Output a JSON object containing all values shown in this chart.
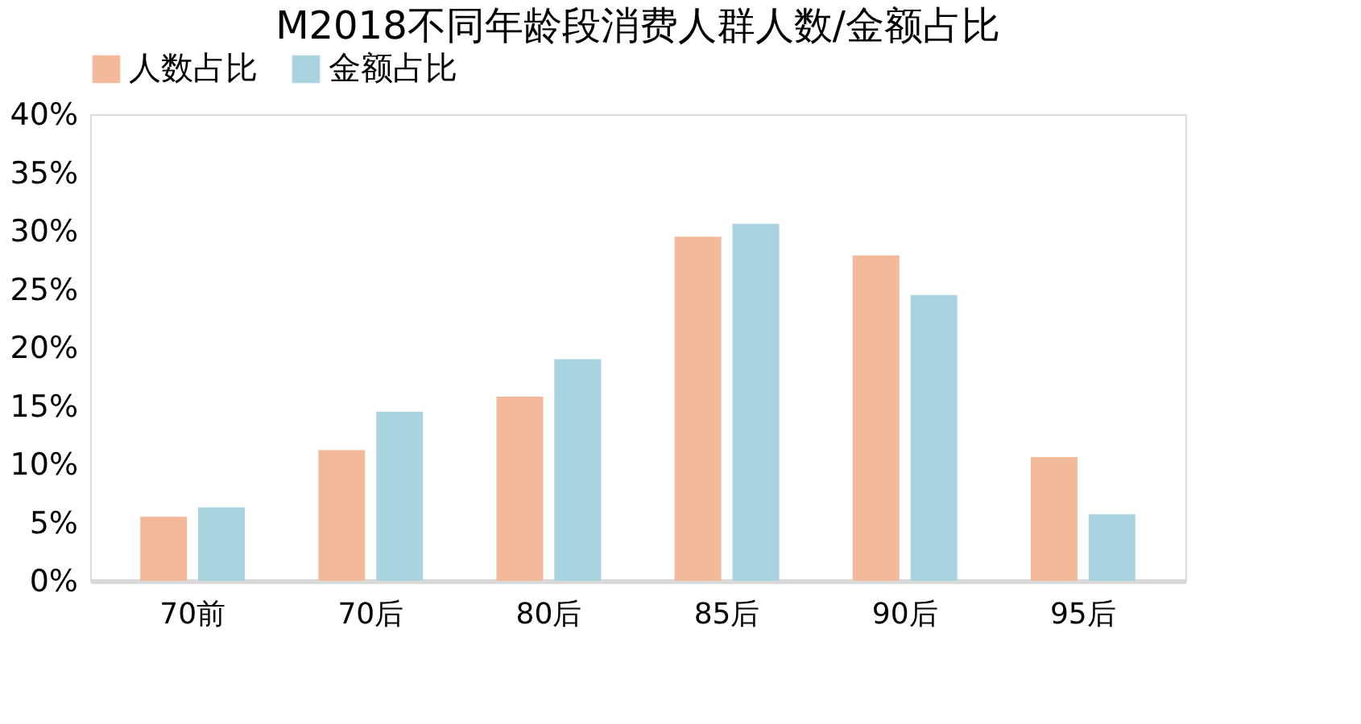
{
  "chart_data": {
    "type": "bar",
    "title": "M2018不同年龄段消费人群人数/金额占比",
    "categories": [
      "70前",
      "70后",
      "80后",
      "85后",
      "90后",
      "95后"
    ],
    "series": [
      {
        "name": "人数占比",
        "color": "#f2b99a",
        "values": [
          5.5,
          11.2,
          15.8,
          29.5,
          27.9,
          10.6
        ]
      },
      {
        "name": "金额占比",
        "color": "#a8d3df",
        "values": [
          6.3,
          14.5,
          19.0,
          30.6,
          24.5,
          5.7
        ]
      }
    ],
    "ylim": [
      0,
      40
    ],
    "yticks": [
      {
        "value": 0,
        "label": "0%"
      },
      {
        "value": 5,
        "label": "5%"
      },
      {
        "value": 10,
        "label": "10%"
      },
      {
        "value": 15,
        "label": "15%"
      },
      {
        "value": 20,
        "label": "20%"
      },
      {
        "value": 25,
        "label": "25%"
      },
      {
        "value": 30,
        "label": "30%"
      },
      {
        "value": 35,
        "label": "35%"
      },
      {
        "value": 40,
        "label": "40%"
      }
    ],
    "grid": false,
    "legend": "top"
  }
}
